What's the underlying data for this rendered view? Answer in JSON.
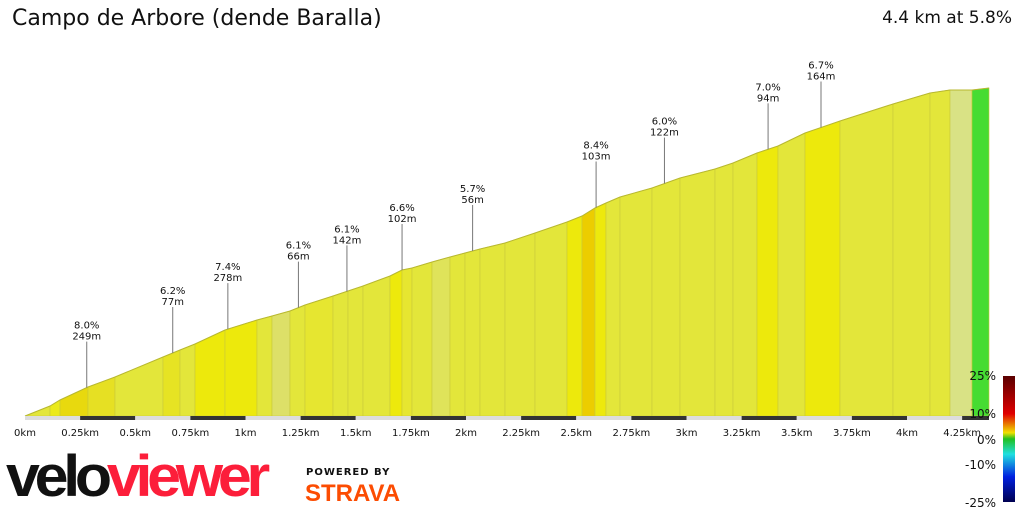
{
  "header": {
    "title": "Campo de Arbore (dende Baralla)",
    "summary": "4.4 km at 5.8%"
  },
  "chart_data": {
    "type": "area",
    "title": "Campo de Arbore (dende Baralla)",
    "x_unit": "km",
    "xlim": [
      0,
      4.37
    ],
    "x_ticks": [
      "0km",
      "0.25km",
      "0.5km",
      "0.75km",
      "1km",
      "1.25km",
      "1.5km",
      "1.75km",
      "2km",
      "2.25km",
      "2.5km",
      "2.75km",
      "3km",
      "3.25km",
      "3.5km",
      "3.75km",
      "4km",
      "4.25km"
    ],
    "annotations": [
      {
        "x": 0.28,
        "grade": "8.0%",
        "length": "249m"
      },
      {
        "x": 0.67,
        "grade": "6.2%",
        "length": "77m"
      },
      {
        "x": 0.92,
        "grade": "7.4%",
        "length": "278m"
      },
      {
        "x": 1.24,
        "grade": "6.1%",
        "length": "66m"
      },
      {
        "x": 1.46,
        "grade": "6.1%",
        "length": "142m"
      },
      {
        "x": 1.71,
        "grade": "6.6%",
        "length": "102m"
      },
      {
        "x": 2.03,
        "grade": "5.7%",
        "length": "56m"
      },
      {
        "x": 2.59,
        "grade": "8.4%",
        "length": "103m"
      },
      {
        "x": 2.9,
        "grade": "6.0%",
        "length": "122m"
      },
      {
        "x": 3.37,
        "grade": "7.0%",
        "length": "94m"
      },
      {
        "x": 3.61,
        "grade": "6.7%",
        "length": "164m"
      }
    ],
    "gradient_scale": {
      "labels": [
        "25%",
        "10%",
        "0%",
        "-10%",
        "-25%"
      ],
      "colors": [
        "#5a0000",
        "#e00000",
        "#f0e000",
        "#20c020",
        "#20e0e0",
        "#0020e0",
        "#000050"
      ]
    }
  },
  "branding": {
    "velo": "velo",
    "viewer": "viewer",
    "powered_by": "POWERED BY",
    "strava": "STRAVA"
  }
}
